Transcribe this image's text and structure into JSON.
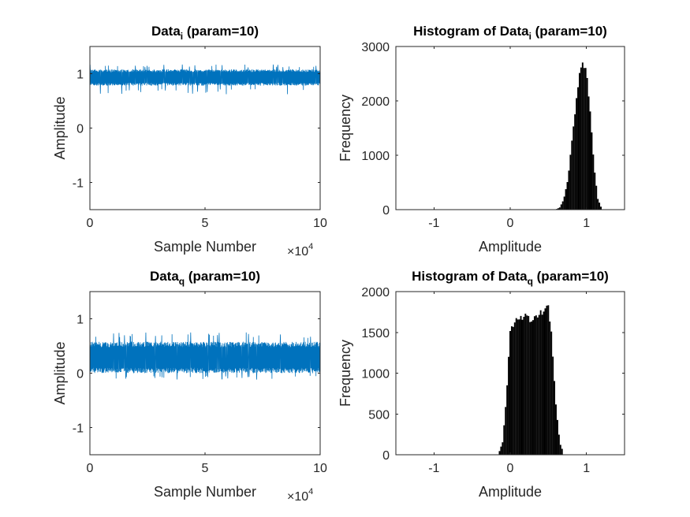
{
  "chart_data": [
    {
      "type": "line",
      "title": "Data",
      "title_sub": "i",
      "title_suffix": " (param=10)",
      "xlabel": "Sample Number",
      "ylabel": "Amplitude",
      "x_exponent_base": "×10",
      "x_exponent": "4",
      "xlim": [
        0,
        10
      ],
      "ylim": [
        -1.5,
        1.5
      ],
      "xticks": [
        0,
        5,
        10
      ],
      "yticks": [
        -1,
        0,
        1
      ],
      "xtick_labels": [
        "0",
        "5",
        "10"
      ],
      "ytick_labels": [
        "-1",
        "0",
        "1"
      ],
      "series": [
        {
          "x_range": [
            0,
            10
          ],
          "mean": 0.93,
          "spread_low": 0.78,
          "spread_high": 1.08,
          "min": 0.62,
          "max": 1.17,
          "color": "#0072BD"
        }
      ]
    },
    {
      "type": "bar",
      "title": "Histogram of Data",
      "title_sub": "i",
      "title_suffix": " (param=10)",
      "xlabel": "Amplitude",
      "ylabel": "Frequency",
      "xlim": [
        -1.5,
        1.5
      ],
      "ylim": [
        0,
        3000
      ],
      "xticks": [
        -1,
        0,
        1
      ],
      "yticks": [
        0,
        1000,
        2000,
        3000
      ],
      "xtick_labels": [
        "-1",
        "0",
        "1"
      ],
      "ytick_labels": [
        "0",
        "1000",
        "2000",
        "3000"
      ],
      "bin_centers": [
        0.6,
        0.65,
        0.7,
        0.75,
        0.8,
        0.85,
        0.9,
        0.95,
        0.98,
        1.0,
        1.05,
        1.1,
        1.15,
        1.2
      ],
      "values": [
        5,
        40,
        180,
        500,
        1100,
        1800,
        2400,
        2650,
        2700,
        2550,
        1800,
        800,
        200,
        20
      ],
      "color": "#000000"
    },
    {
      "type": "line",
      "title": "Data",
      "title_sub": "q",
      "title_suffix": " (param=10)",
      "xlabel": "Sample Number",
      "ylabel": "Amplitude",
      "x_exponent_base": "×10",
      "x_exponent": "4",
      "xlim": [
        0,
        10
      ],
      "ylim": [
        -1.5,
        1.5
      ],
      "xticks": [
        0,
        5,
        10
      ],
      "yticks": [
        -1,
        0,
        1
      ],
      "xtick_labels": [
        "0",
        "5",
        "10"
      ],
      "ytick_labels": [
        "-1",
        "0",
        "1"
      ],
      "series": [
        {
          "x_range": [
            0,
            10
          ],
          "mean": 0.28,
          "spread_low": 0.0,
          "spread_high": 0.58,
          "min": -0.12,
          "max": 0.75,
          "color": "#0072BD"
        }
      ]
    },
    {
      "type": "bar",
      "title": "Histogram of Data",
      "title_sub": "q",
      "title_suffix": " (param=10)",
      "xlabel": "Amplitude",
      "ylabel": "Frequency",
      "xlim": [
        -1.5,
        1.5
      ],
      "ylim": [
        0,
        2000
      ],
      "xticks": [
        -1,
        0,
        1
      ],
      "yticks": [
        0,
        500,
        1000,
        1500,
        2000
      ],
      "xtick_labels": [
        "-1",
        "0",
        "1"
      ],
      "ytick_labels": [
        "0",
        "500",
        "1000",
        "1500",
        "2000"
      ],
      "bin_centers": [
        -0.15,
        -0.1,
        -0.05,
        0.0,
        0.05,
        0.1,
        0.15,
        0.2,
        0.25,
        0.3,
        0.35,
        0.4,
        0.45,
        0.5,
        0.55,
        0.6,
        0.65,
        0.7
      ],
      "values": [
        20,
        150,
        700,
        1500,
        1620,
        1670,
        1660,
        1680,
        1650,
        1700,
        1720,
        1750,
        1780,
        1800,
        1400,
        600,
        150,
        20
      ],
      "color": "#000000"
    }
  ]
}
